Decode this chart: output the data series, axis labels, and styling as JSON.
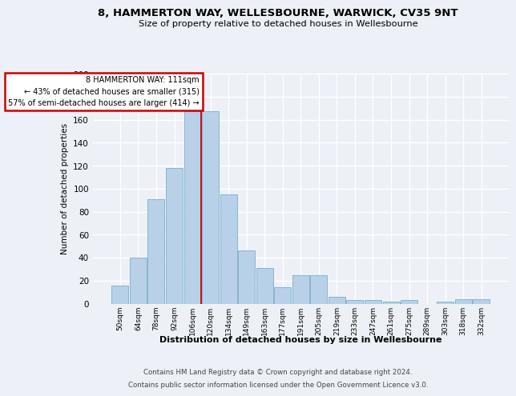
{
  "title": "8, HAMMERTON WAY, WELLESBOURNE, WARWICK, CV35 9NT",
  "subtitle": "Size of property relative to detached houses in Wellesbourne",
  "xlabel": "Distribution of detached houses by size in Wellesbourne",
  "ylabel": "Number of detached properties",
  "categories": [
    "50sqm",
    "64sqm",
    "78sqm",
    "92sqm",
    "106sqm",
    "120sqm",
    "134sqm",
    "149sqm",
    "163sqm",
    "177sqm",
    "191sqm",
    "205sqm",
    "219sqm",
    "233sqm",
    "247sqm",
    "261sqm",
    "275sqm",
    "289sqm",
    "303sqm",
    "318sqm",
    "332sqm"
  ],
  "values": [
    16,
    40,
    91,
    118,
    167,
    167,
    95,
    46,
    31,
    14,
    25,
    25,
    6,
    3,
    3,
    2,
    3,
    0,
    2,
    4,
    4
  ],
  "bar_color": "#b8d0e8",
  "bar_edge_color": "#7aafc8",
  "vline_x": 4.5,
  "annotation_text_line1": "8 HAMMERTON WAY: 111sqm",
  "annotation_text_line2": "← 43% of detached houses are smaller (315)",
  "annotation_text_line3": "57% of semi-detached houses are larger (414) →",
  "annotation_box_edgecolor": "#cc0000",
  "vline_color": "#cc0000",
  "background_color": "#edf1f7",
  "footer_line1": "Contains HM Land Registry data © Crown copyright and database right 2024.",
  "footer_line2": "Contains public sector information licensed under the Open Government Licence v3.0.",
  "ylim": [
    0,
    200
  ],
  "yticks": [
    0,
    20,
    40,
    60,
    80,
    100,
    120,
    140,
    160,
    180,
    200
  ]
}
